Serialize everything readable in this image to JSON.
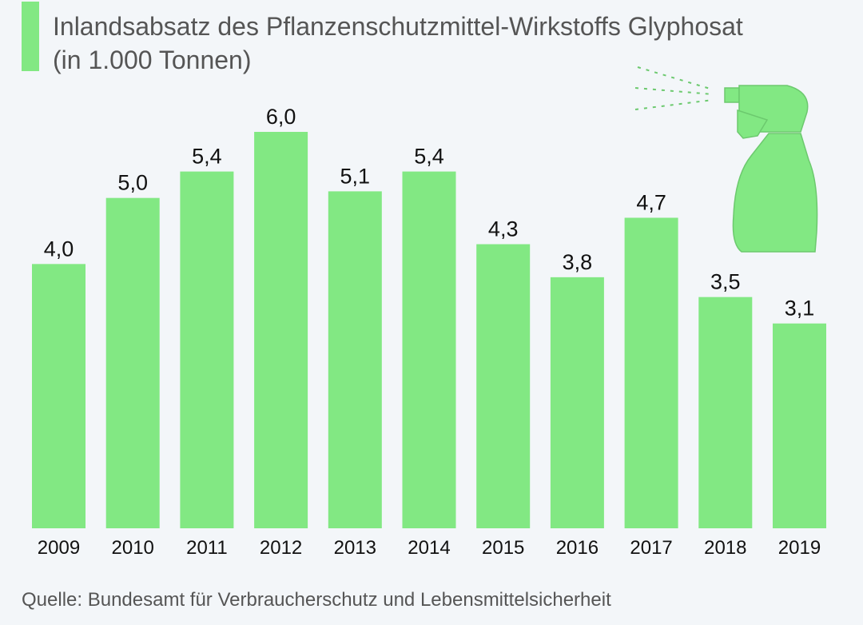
{
  "chart_data": {
    "type": "bar",
    "title": "Inlandsabsatz des Pflanzenschutzmittel-Wirkstoffs Glyphosat (in 1.000 Tonnen)",
    "categories": [
      "2009",
      "2010",
      "2011",
      "2012",
      "2013",
      "2014",
      "2015",
      "2016",
      "2017",
      "2018",
      "2019"
    ],
    "values": [
      4.0,
      5.0,
      5.4,
      6.0,
      5.1,
      5.4,
      4.3,
      3.8,
      4.7,
      3.5,
      3.1
    ],
    "data_labels": [
      "4,0",
      "5,0",
      "5,4",
      "6,0",
      "5,1",
      "5,4",
      "4,3",
      "3,8",
      "4,7",
      "3,5",
      "3,1"
    ],
    "xlabel": "",
    "ylabel": "",
    "ylim": [
      0,
      6
    ],
    "grid": false,
    "bar_color": "#82e883"
  },
  "source": "Quelle: Bundesamt für Verbraucherschutz und Lebensmittelsicherheit",
  "decoration": {
    "icon": "spray-bottle-icon",
    "color": "#82e883"
  }
}
